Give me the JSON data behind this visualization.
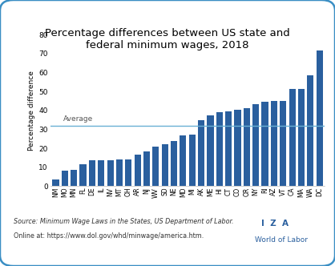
{
  "title": "Percentage differences between US state and\nfederal minimum wages, 2018",
  "ylabel": "Percentage difference",
  "states": [
    "NM",
    "MO",
    "MN",
    "FL",
    "DE",
    "IL",
    "NV",
    "MT",
    "OH",
    "AR",
    "NJ",
    "WV",
    "SD",
    "NE",
    "MD",
    "MI",
    "AK",
    "ME",
    "HI",
    "CT",
    "CO",
    "OR",
    "NY",
    "RI",
    "AZ",
    "VT",
    "CA",
    "MA",
    "WA",
    "DC"
  ],
  "values": [
    3.5,
    8.3,
    8.7,
    11.5,
    13.5,
    13.7,
    13.7,
    14.1,
    14.3,
    16.8,
    18.5,
    20.8,
    22.0,
    24.0,
    27.0,
    27.3,
    35.0,
    37.5,
    39.2,
    39.3,
    40.5,
    41.2,
    43.5,
    44.5,
    45.0,
    45.0,
    51.5,
    51.5,
    58.5,
    71.5
  ],
  "bar_color": "#2a5f9e",
  "average_line": 32.0,
  "average_label": "Average",
  "average_color": "#6ab0d4",
  "ylim": [
    0,
    80
  ],
  "yticks": [
    0,
    10,
    20,
    30,
    40,
    50,
    60,
    70,
    80
  ],
  "source_line1": "Source: Minimum Wage Laws in the States, US Department of Labor.",
  "source_line2": "Online at: https://www.dol.gov/whd/minwage/america.htm.",
  "iza_text": "I  Z  A",
  "wol_text": "World of Labor",
  "bg_color": "#ffffff",
  "border_color": "#3a8ec4"
}
